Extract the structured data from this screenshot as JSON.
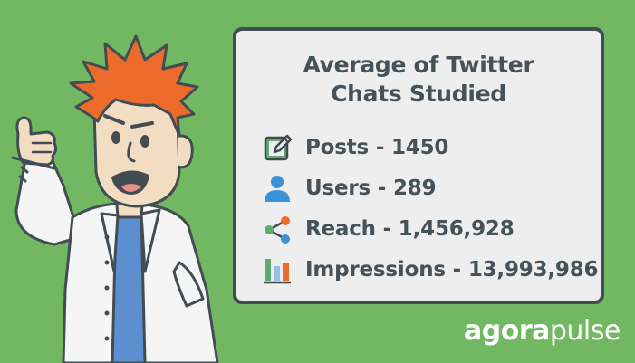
{
  "card": {
    "title_line1": "Average of Twitter",
    "title_line2": "Chats Studied",
    "stats": [
      {
        "icon": "edit-icon",
        "label": "Posts - 1450"
      },
      {
        "icon": "user-icon",
        "label": "Users - 289"
      },
      {
        "icon": "share-icon",
        "label": "Reach - 1,456,928"
      },
      {
        "icon": "bar-chart-icon",
        "label": "Impressions - 13,993,986"
      }
    ]
  },
  "brand": {
    "part1": "agora",
    "part2": "pulse"
  },
  "colors": {
    "background": "#72b862",
    "card_border": "#414d53",
    "text": "#46525a",
    "hair": "#ec6a2a",
    "posts_icon": "#5dab72",
    "users_icon": "#3a93d8",
    "reach_icon": "#ec6a2a"
  }
}
